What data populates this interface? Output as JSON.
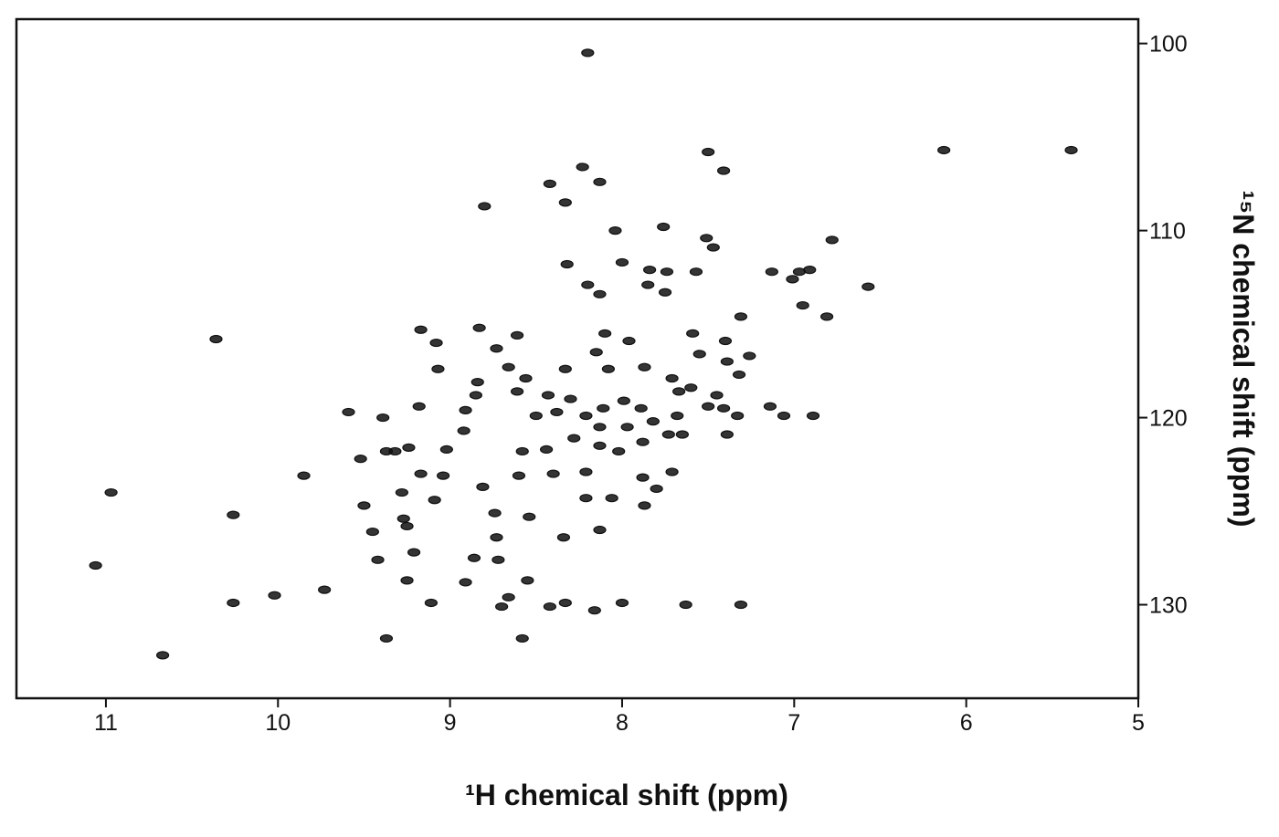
{
  "chart_data": {
    "type": "scatter",
    "x_label": "¹H chemical shift (ppm)",
    "y_label": "¹⁵N chemical shift (ppm)",
    "xlim": [
      11.52,
      5
    ],
    "ylim": [
      98.7,
      135
    ],
    "xticks": [
      11,
      10,
      9,
      8,
      7,
      6,
      5
    ],
    "yticks": [
      100,
      110,
      120,
      130
    ],
    "series": [
      {
        "color": "#111111",
        "x": [
          8.2,
          7.5,
          7.41,
          6.13,
          5.39,
          8.23,
          8.42,
          8.13,
          8.8,
          8.33,
          8.04,
          7.76,
          7.51,
          7.47,
          6.78,
          8.32,
          8.0,
          7.84,
          8.2,
          8.13,
          7.85,
          7.74,
          7.57,
          7.75,
          7.01,
          6.97,
          6.91,
          7.13,
          6.95,
          6.81,
          7.31,
          6.57,
          9.17,
          9.08,
          8.83,
          8.61,
          8.73,
          7.96,
          8.1,
          8.15,
          7.59,
          7.55,
          7.4,
          7.39,
          7.26,
          7.32,
          10.36,
          9.07,
          8.84,
          8.66,
          8.56,
          8.33,
          8.08,
          7.87,
          7.71,
          7.45,
          7.6,
          7.67,
          9.18,
          8.85,
          8.61,
          8.43,
          8.3,
          8.38,
          8.5,
          8.21,
          8.11,
          7.99,
          7.89,
          7.68,
          7.5,
          7.41,
          7.33,
          7.14,
          7.06,
          6.89,
          9.59,
          9.39,
          8.91,
          8.13,
          7.97,
          7.82,
          7.65,
          7.39,
          8.92,
          9.52,
          9.37,
          9.24,
          9.02,
          8.58,
          8.44,
          9.32,
          8.02,
          7.88,
          7.73,
          8.28,
          8.13,
          9.17,
          9.04,
          9.85,
          8.81,
          8.6,
          8.4,
          8.21,
          7.88,
          7.8,
          7.71,
          10.97,
          10.26,
          9.5,
          9.28,
          9.09,
          8.74,
          8.54,
          8.21,
          8.06,
          7.87,
          9.45,
          9.27,
          9.25,
          8.73,
          8.34,
          8.13,
          9.42,
          9.21,
          8.86,
          8.72,
          9.25,
          8.91,
          8.55,
          8.66,
          11.06,
          10.26,
          10.02,
          9.73,
          9.37,
          8.58,
          10.67,
          8.33,
          8.16,
          8.0,
          7.63,
          7.31,
          8.42,
          9.11,
          8.7
        ],
        "y": [
          100.5,
          105.8,
          106.8,
          105.7,
          105.7,
          106.6,
          107.5,
          107.4,
          108.7,
          108.5,
          110.0,
          109.8,
          110.4,
          110.9,
          110.5,
          111.8,
          111.7,
          112.1,
          112.9,
          113.4,
          112.9,
          112.2,
          112.2,
          113.3,
          112.6,
          112.2,
          112.1,
          112.2,
          114.0,
          114.6,
          114.6,
          113.0,
          115.3,
          116.0,
          115.2,
          115.6,
          116.3,
          115.9,
          115.5,
          116.5,
          115.5,
          116.6,
          115.9,
          117.0,
          116.7,
          117.7,
          115.8,
          117.4,
          118.1,
          117.3,
          117.9,
          117.4,
          117.4,
          117.3,
          117.9,
          118.8,
          118.4,
          118.6,
          119.4,
          118.8,
          118.6,
          118.8,
          119.0,
          119.7,
          119.9,
          119.9,
          119.5,
          119.1,
          119.5,
          119.9,
          119.4,
          119.5,
          119.9,
          119.4,
          119.9,
          119.9,
          119.7,
          120.0,
          119.6,
          120.5,
          120.5,
          120.2,
          120.9,
          120.9,
          120.7,
          122.2,
          121.8,
          121.6,
          121.7,
          121.8,
          121.7,
          121.8,
          121.8,
          121.3,
          120.9,
          121.1,
          121.5,
          123.0,
          123.1,
          123.1,
          123.7,
          123.1,
          123.0,
          122.9,
          123.2,
          123.8,
          122.9,
          124.0,
          125.2,
          124.7,
          124.0,
          124.4,
          125.1,
          125.3,
          124.3,
          124.3,
          124.7,
          126.1,
          125.4,
          125.8,
          126.4,
          126.4,
          126.0,
          127.6,
          127.2,
          127.5,
          127.6,
          128.7,
          128.8,
          128.7,
          129.6,
          127.9,
          129.9,
          129.5,
          129.2,
          131.8,
          131.8,
          132.7,
          129.9,
          130.3,
          129.9,
          130.0,
          130.0,
          130.1,
          129.9,
          130.1
        ]
      }
    ]
  }
}
